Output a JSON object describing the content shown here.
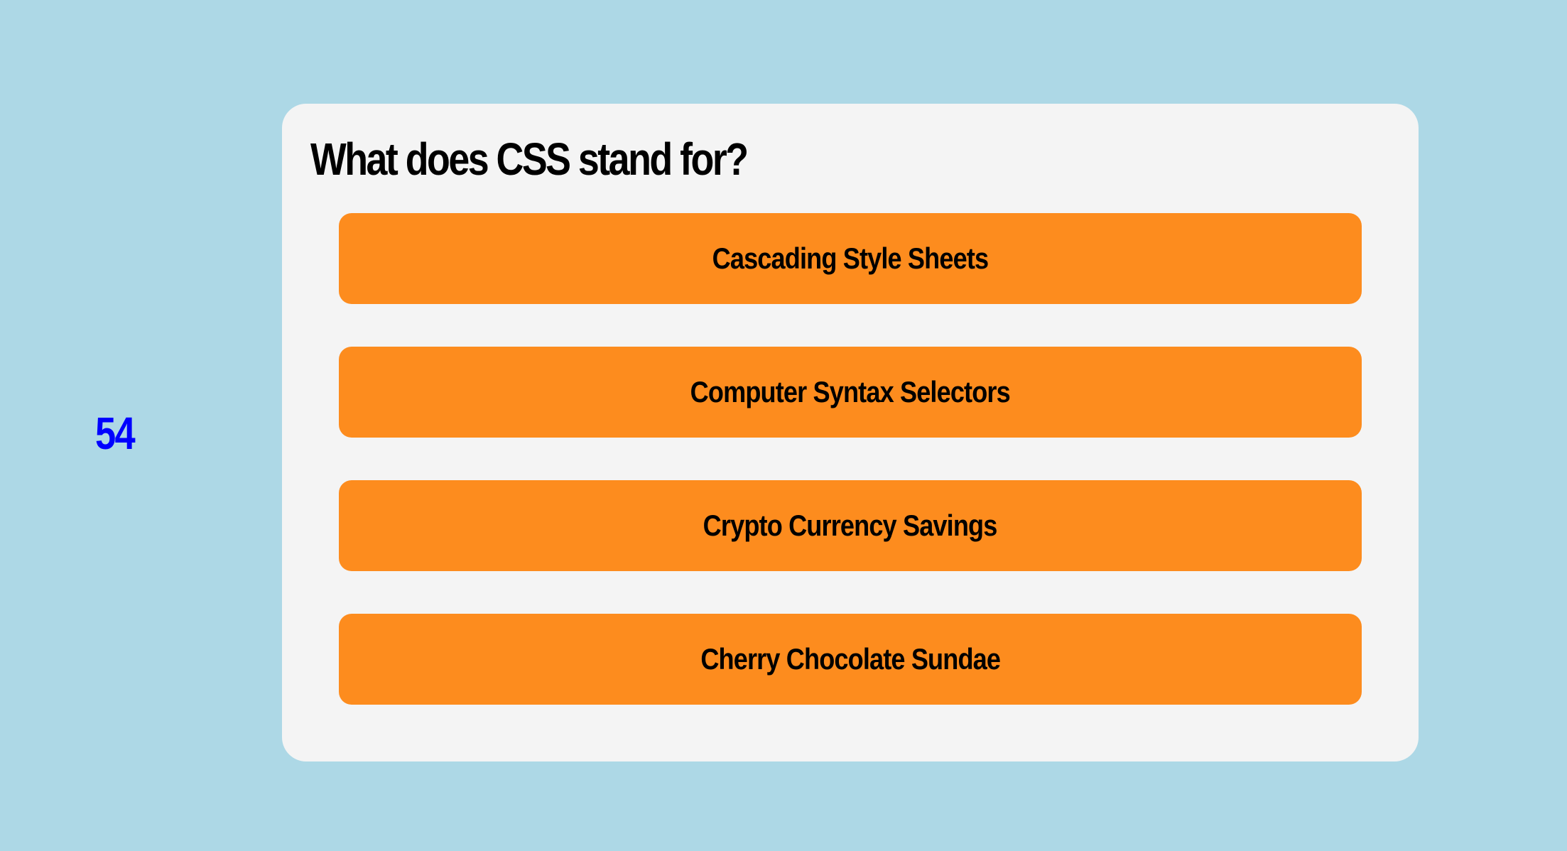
{
  "timer": {
    "value": "54"
  },
  "quiz": {
    "question": "What does CSS stand for?",
    "options": [
      {
        "label": "Cascading Style Sheets"
      },
      {
        "label": "Computer Syntax Selectors"
      },
      {
        "label": "Crypto Currency Savings"
      },
      {
        "label": "Cherry Chocolate Sundae"
      }
    ]
  },
  "colors": {
    "background": "#add8e6",
    "card": "#f4f4f4",
    "option": "#fd8c1e",
    "timer": "#0000ff",
    "text": "#000000"
  }
}
